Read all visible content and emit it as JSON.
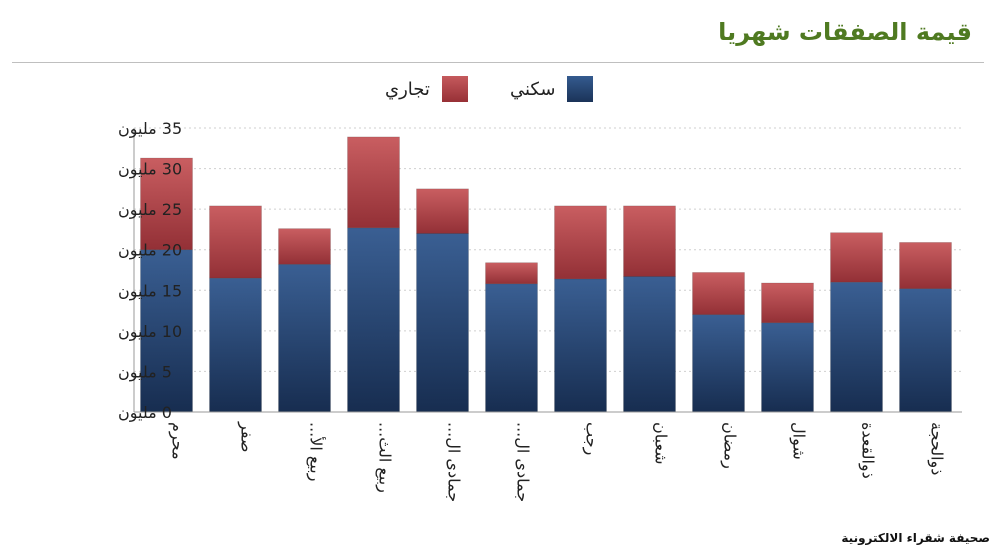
{
  "page": {
    "title": "قيمة الصفقات شهريا",
    "footer": "صحيفة شقراء الالكترونية"
  },
  "chart_data": {
    "type": "bar",
    "stacked": true,
    "title": "قيمة الصفقات شهريا",
    "xlabel": "",
    "ylabel": "",
    "ylim": [
      0,
      35
    ],
    "yticks": [
      0,
      5,
      10,
      15,
      20,
      25,
      30,
      35
    ],
    "ytick_labels": [
      "0 مليون",
      "5 مليون",
      "10 مليون",
      "15 مليون",
      "20 مليون",
      "25 مليون",
      "30 مليون",
      "35 مليون"
    ],
    "grid": true,
    "legend_position": "top-center",
    "categories": [
      "محرم",
      "صفر",
      "ربيع الأ...",
      "ربيع الث...",
      "جمادى ال...",
      "جمادى ال...",
      "رجب",
      "شعبان",
      "رمضان",
      "شوال",
      "ذوالقعدة",
      "ذوالحجة"
    ],
    "series": [
      {
        "name": "سكني",
        "color": "#1f3d6b",
        "values": [
          20.0,
          16.5,
          18.2,
          22.7,
          22.0,
          15.8,
          16.4,
          16.7,
          12.0,
          11.0,
          16.0,
          15.2
        ]
      },
      {
        "name": "تجاري",
        "color": "#a8343a",
        "values": [
          11.3,
          8.9,
          4.4,
          11.2,
          5.5,
          2.6,
          9.0,
          8.7,
          5.2,
          4.9,
          6.1,
          5.7
        ]
      }
    ]
  }
}
